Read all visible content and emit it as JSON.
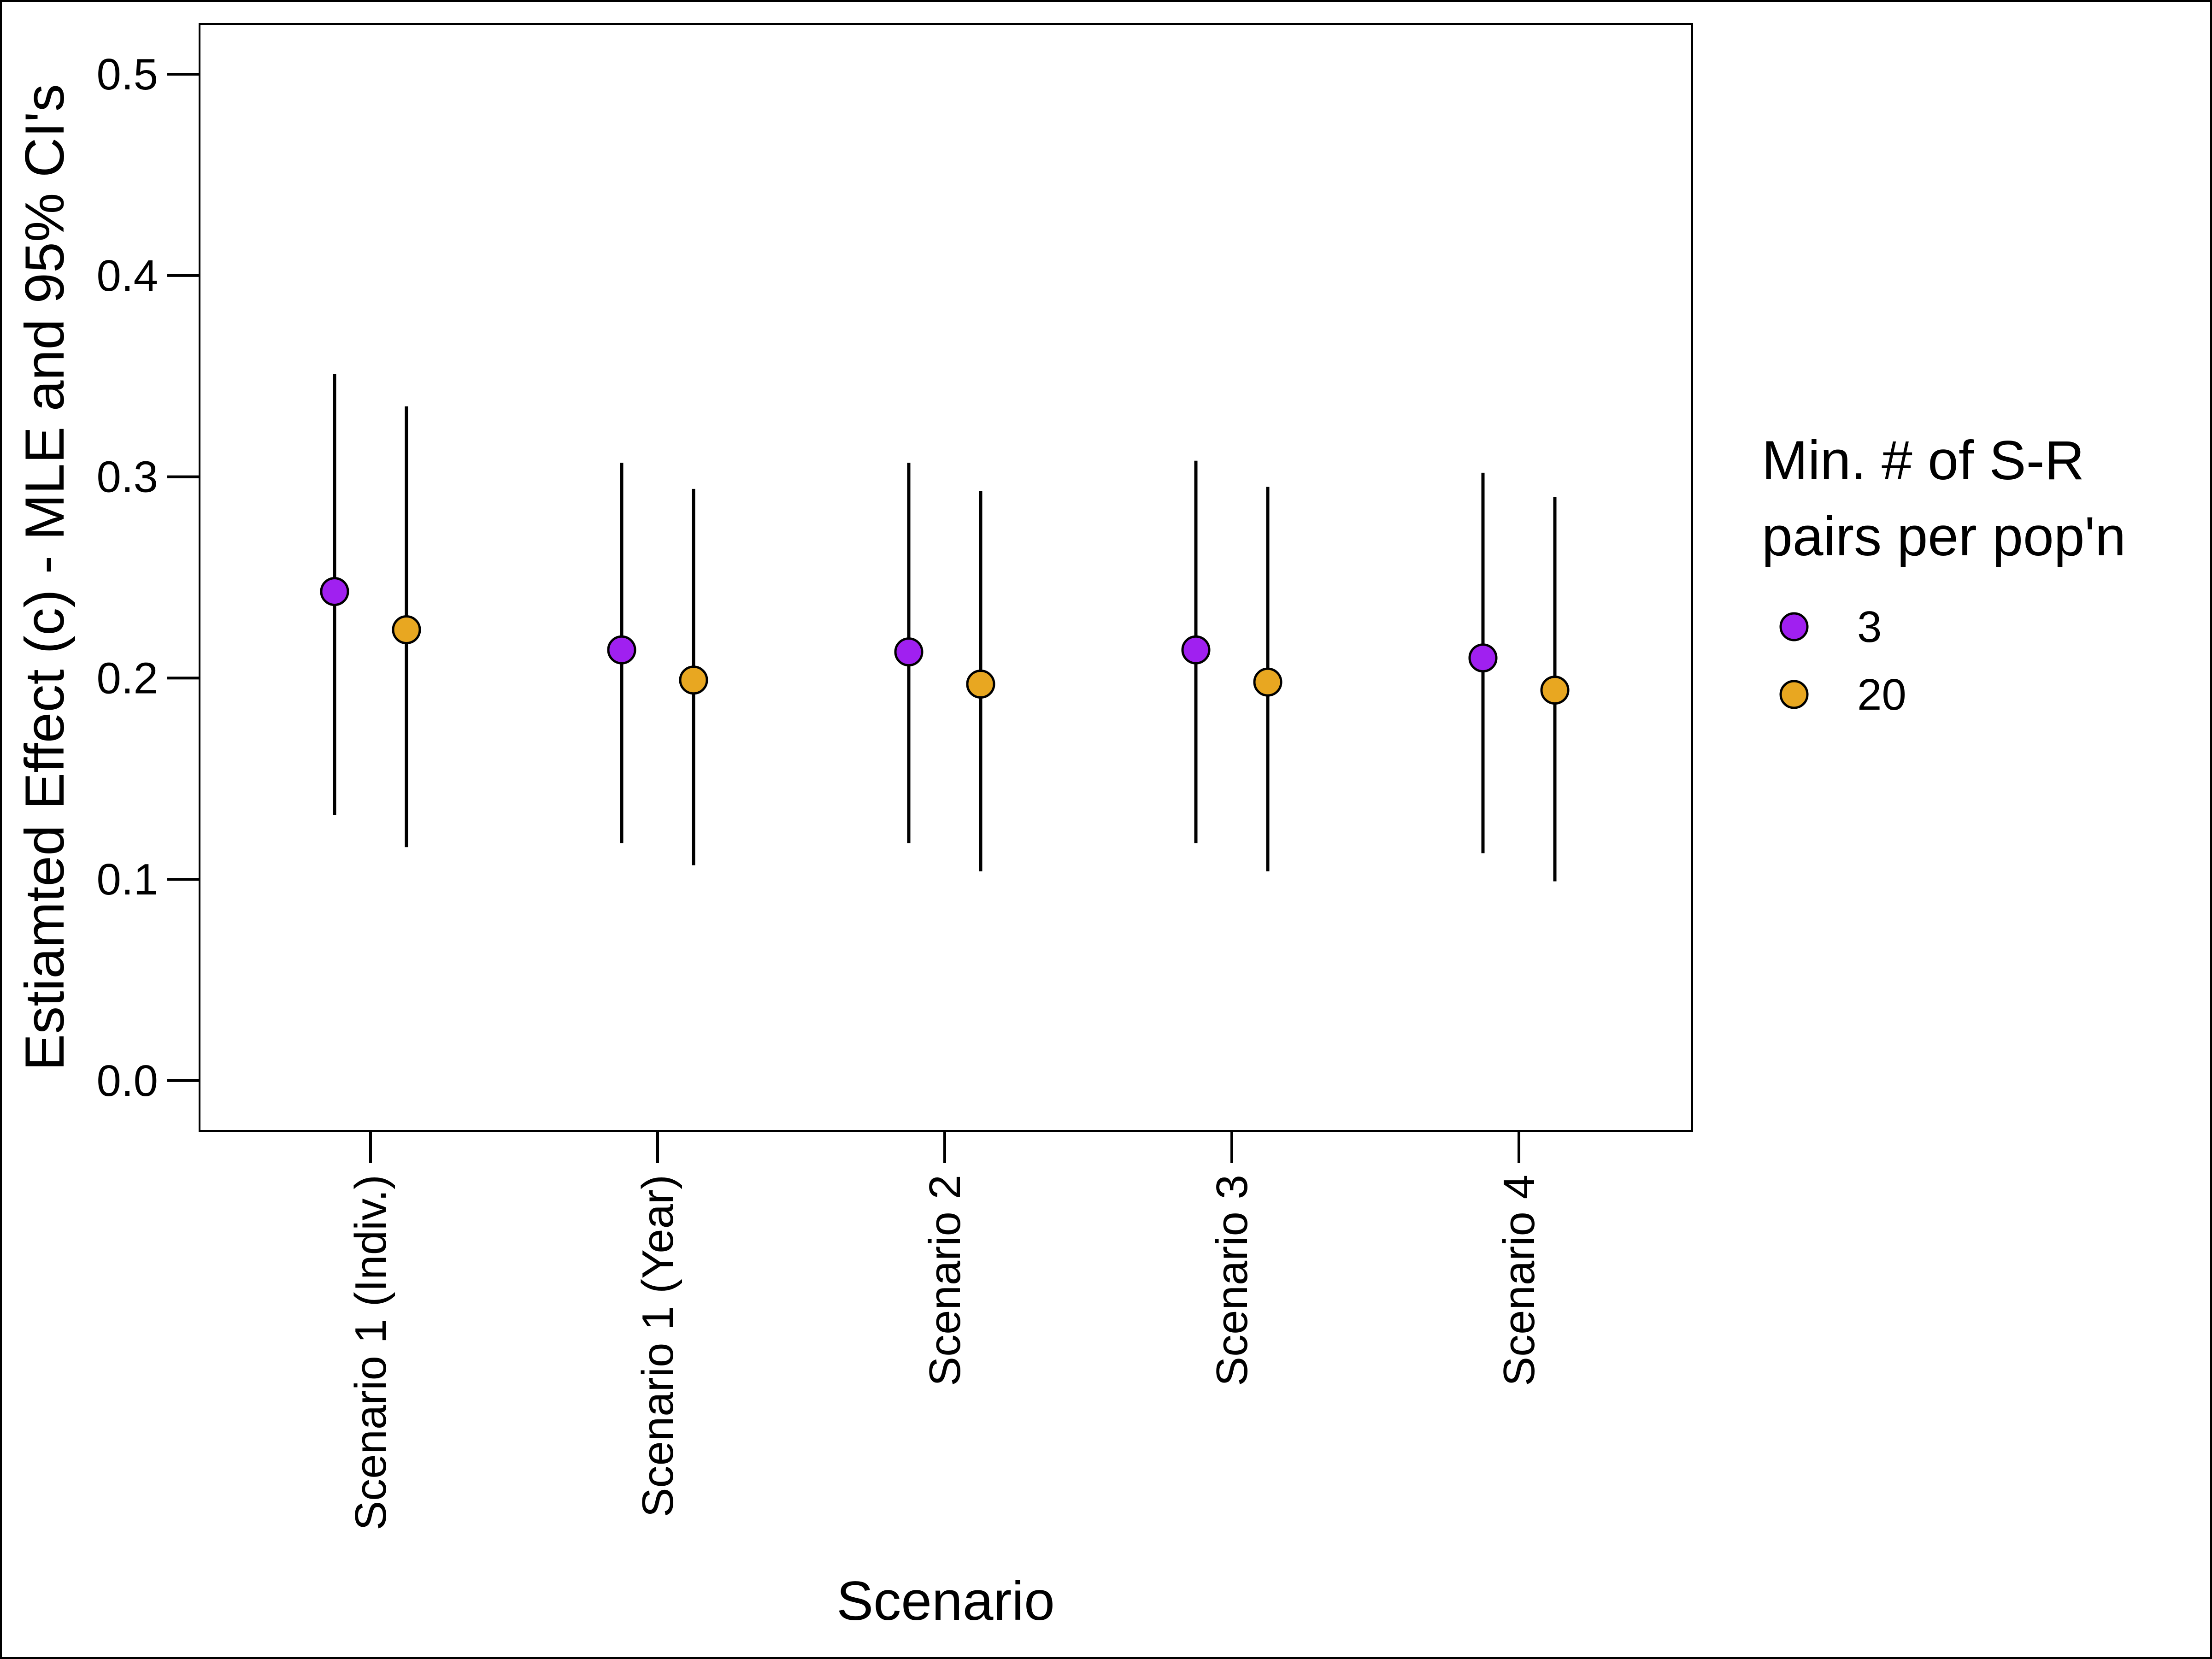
{
  "chart_data": {
    "type": "scatter",
    "xlabel": "Scenario",
    "ylabel": "Estiamted Effect (c) - MLE and 95% CI's",
    "categories": [
      "Scenario 1 (Indiv.)",
      "Scenario 1 (Year)",
      "Scenario 2",
      "Scenario 3",
      "Scenario 4"
    ],
    "ylim": [
      -0.025,
      0.525
    ],
    "yticks": [
      "0.0",
      "0.1",
      "0.2",
      "0.3",
      "0.4",
      "0.5"
    ],
    "grid": false,
    "legend": {
      "title_line1": "Min. # of S-R",
      "title_line2": "pairs per pop'n",
      "placement": "right"
    },
    "series": [
      {
        "name": "3",
        "color": "#a020f0",
        "mle": [
          0.243,
          0.214,
          0.213,
          0.214,
          0.21
        ],
        "lower": [
          0.132,
          0.118,
          0.118,
          0.118,
          0.113
        ],
        "upper": [
          0.351,
          0.307,
          0.307,
          0.308,
          0.302
        ]
      },
      {
        "name": "20",
        "color": "#e8a721",
        "mle": [
          0.224,
          0.199,
          0.197,
          0.198,
          0.194
        ],
        "lower": [
          0.116,
          0.107,
          0.104,
          0.104,
          0.099
        ],
        "upper": [
          0.335,
          0.294,
          0.293,
          0.295,
          0.29
        ]
      }
    ]
  }
}
